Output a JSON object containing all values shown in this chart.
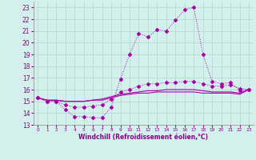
{
  "title": "",
  "xlabel": "Windchill (Refroidissement éolien,°C)",
  "ylabel": "",
  "background_color": "#d4f0ec",
  "grid_color": "#b0d8d0",
  "line_color": "#aa00aa",
  "x": [
    0,
    1,
    2,
    3,
    4,
    5,
    6,
    7,
    8,
    9,
    10,
    11,
    12,
    13,
    14,
    15,
    16,
    17,
    18,
    19,
    20,
    21,
    22,
    23
  ],
  "ylim": [
    13,
    23.5
  ],
  "xlim": [
    -0.5,
    23.5
  ],
  "yticks": [
    13,
    14,
    15,
    16,
    17,
    18,
    19,
    20,
    21,
    22,
    23
  ],
  "xticks": [
    0,
    1,
    2,
    3,
    4,
    5,
    6,
    7,
    8,
    9,
    10,
    11,
    12,
    13,
    14,
    15,
    16,
    17,
    18,
    19,
    20,
    21,
    22,
    23
  ],
  "line1": [
    15.3,
    15.0,
    15.0,
    14.3,
    13.7,
    13.7,
    13.6,
    13.6,
    14.5,
    16.9,
    19.0,
    20.8,
    20.5,
    21.1,
    21.0,
    21.9,
    22.8,
    23.0,
    19.0,
    16.7,
    16.5,
    16.6,
    15.9,
    16.0
  ],
  "line2": [
    15.3,
    15.0,
    15.0,
    14.7,
    14.5,
    14.5,
    14.6,
    14.7,
    15.2,
    15.8,
    16.0,
    16.3,
    16.5,
    16.5,
    16.6,
    16.6,
    16.7,
    16.7,
    16.5,
    16.3,
    16.3,
    16.4,
    16.1,
    16.0
  ],
  "line3": [
    15.3,
    15.1,
    15.1,
    15.0,
    15.0,
    15.0,
    15.1,
    15.2,
    15.4,
    15.6,
    15.7,
    15.8,
    15.9,
    15.9,
    16.0,
    16.0,
    16.0,
    16.0,
    15.9,
    15.8,
    15.8,
    15.8,
    15.7,
    16.0
  ],
  "line4": [
    15.3,
    15.1,
    15.1,
    15.0,
    15.0,
    15.0,
    15.1,
    15.1,
    15.3,
    15.5,
    15.6,
    15.7,
    15.7,
    15.8,
    15.8,
    15.8,
    15.8,
    15.8,
    15.7,
    15.7,
    15.7,
    15.7,
    15.6,
    16.0
  ]
}
